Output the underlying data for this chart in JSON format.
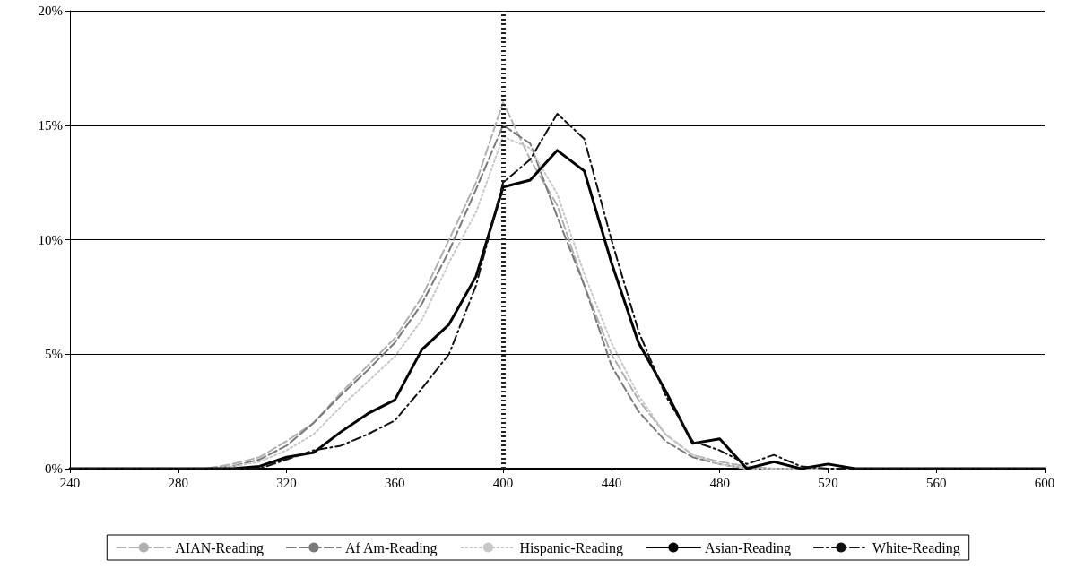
{
  "chart_data": {
    "type": "line",
    "x": [
      240,
      250,
      260,
      270,
      280,
      290,
      300,
      310,
      320,
      330,
      340,
      350,
      360,
      370,
      380,
      390,
      400,
      410,
      420,
      430,
      440,
      450,
      460,
      470,
      480,
      490,
      500,
      510,
      520,
      530,
      540,
      550,
      560,
      570,
      580,
      590,
      600
    ],
    "series": [
      {
        "name": "AIAN-Reading",
        "color": "#b0b0b0",
        "line_style": "dashed",
        "values": [
          0,
          0,
          0,
          0,
          0,
          0,
          0.2,
          0.5,
          1.2,
          2.0,
          3.3,
          4.5,
          5.7,
          7.5,
          10.0,
          12.5,
          16.0,
          13.5,
          11.5,
          8.0,
          5.0,
          3.0,
          1.5,
          0.6,
          0.3,
          0.1,
          0,
          0,
          0,
          0,
          0,
          0,
          0,
          0,
          0,
          0,
          0
        ]
      },
      {
        "name": "Af Am-Reading",
        "color": "#7a7a7a",
        "line_style": "dashed",
        "values": [
          0,
          0,
          0,
          0,
          0,
          0,
          0.1,
          0.4,
          1.0,
          2.0,
          3.2,
          4.3,
          5.5,
          7.2,
          9.5,
          12.2,
          15.0,
          14.2,
          11.0,
          8.0,
          4.5,
          2.5,
          1.2,
          0.5,
          0.2,
          0,
          0,
          0,
          0,
          0,
          0,
          0,
          0,
          0,
          0,
          0,
          0
        ]
      },
      {
        "name": "Hispanic-Reading",
        "color": "#c8c8c8",
        "line_style": "dotted",
        "values": [
          0,
          0,
          0,
          0,
          0,
          0,
          0.1,
          0.3,
          0.8,
          1.5,
          2.7,
          3.8,
          4.9,
          6.5,
          9.0,
          11.2,
          14.5,
          14.0,
          12.0,
          8.5,
          5.5,
          3.2,
          1.5,
          0.6,
          0.2,
          0,
          0,
          0,
          0,
          0,
          0,
          0,
          0,
          0,
          0,
          0,
          0
        ]
      },
      {
        "name": "Asian-Reading",
        "color": "#000000",
        "line_style": "solid",
        "values": [
          0,
          0,
          0,
          0,
          0,
          0,
          0,
          0.1,
          0.5,
          0.7,
          1.6,
          2.4,
          3.0,
          5.2,
          6.3,
          8.4,
          12.3,
          12.6,
          13.9,
          13.0,
          9.0,
          5.5,
          3.4,
          1.1,
          1.3,
          0,
          0.3,
          0,
          0.2,
          0,
          0,
          0,
          0,
          0,
          0,
          0,
          0
        ]
      },
      {
        "name": "White-Reading",
        "color": "#111111",
        "line_style": "dashdot",
        "values": [
          0,
          0,
          0,
          0,
          0,
          0,
          0,
          0,
          0.4,
          0.8,
          1.0,
          1.5,
          2.1,
          3.5,
          5.0,
          8.0,
          12.5,
          13.5,
          15.5,
          14.4,
          10.0,
          6.0,
          3.2,
          1.2,
          0.8,
          0.2,
          0.6,
          0.1,
          0,
          0,
          0,
          0,
          0,
          0,
          0,
          0,
          0
        ]
      }
    ],
    "xlim": [
      240,
      600
    ],
    "xticks": [
      240,
      280,
      320,
      360,
      400,
      440,
      480,
      520,
      560,
      600
    ],
    "ylim": [
      0,
      20
    ],
    "yticks": [
      {
        "value": 0,
        "label": "0%"
      },
      {
        "value": 5,
        "label": "5%"
      },
      {
        "value": 10,
        "label": "10%"
      },
      {
        "value": 15,
        "label": "15%"
      },
      {
        "value": 20,
        "label": "20%"
      }
    ],
    "ref_lines": [
      {
        "axis": "x",
        "value": 400,
        "color": "#222222",
        "line_style": "dotted"
      }
    ],
    "grid": "y",
    "legend": "bottom",
    "marker": "none"
  }
}
